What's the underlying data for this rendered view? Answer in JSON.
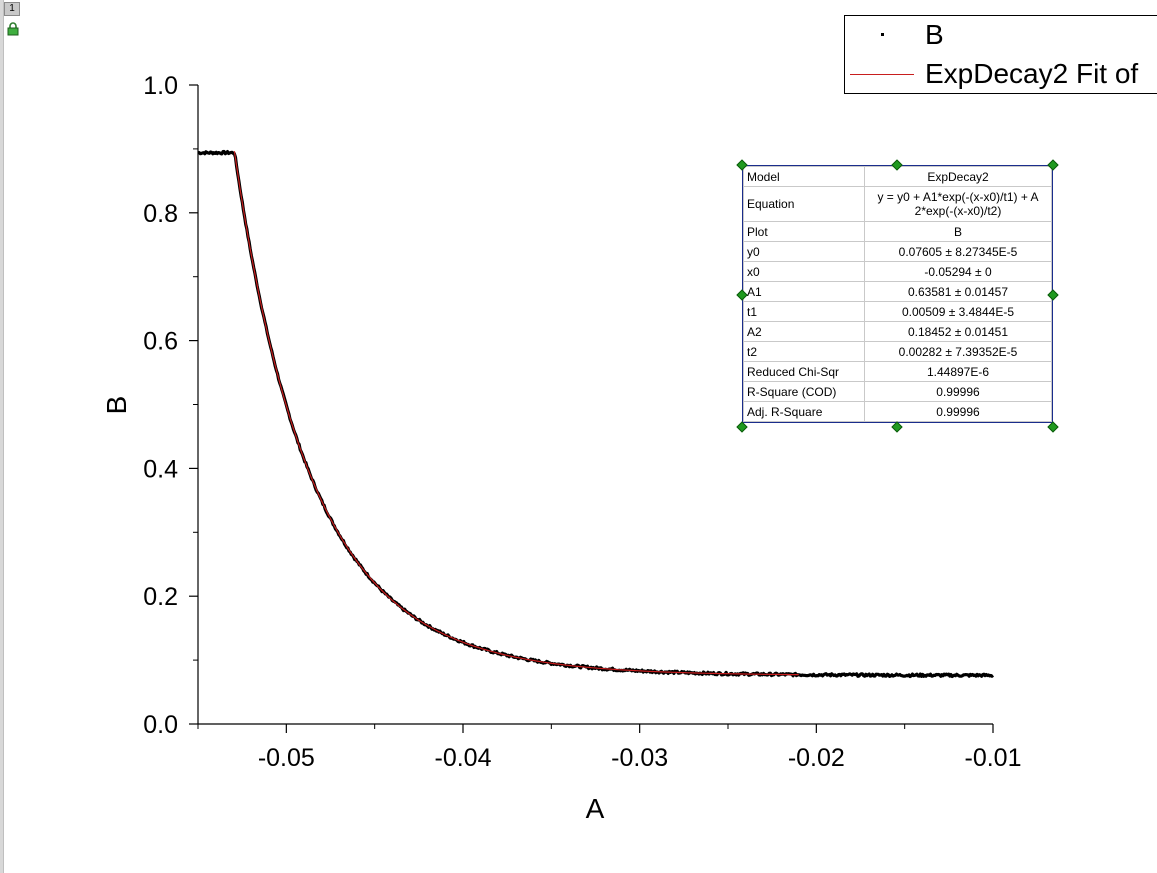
{
  "window": {
    "layer_number": "1"
  },
  "colors": {
    "data": "#000000",
    "fit": "#c81e1e",
    "table_border": "#1a2d8c",
    "handle": "#1f9a1f"
  },
  "legend": {
    "items": [
      {
        "label": "B",
        "symbol": "dot"
      },
      {
        "label": "ExpDecay2 Fit of",
        "symbol": "line"
      }
    ]
  },
  "stats_table": {
    "rows": [
      {
        "key": "Model",
        "value": "ExpDecay2"
      },
      {
        "key": "Equation",
        "value": "y = y0 + A1*exp(-(x-x0)/t1) + A",
        "value2": "2*exp(-(x-x0)/t2)"
      },
      {
        "key": "Plot",
        "value": "B"
      },
      {
        "key": "y0",
        "value": "0.07605 ± 8.27345E-5"
      },
      {
        "key": "x0",
        "value": "-0.05294 ± 0"
      },
      {
        "key": "A1",
        "value": "0.63581 ± 0.01457"
      },
      {
        "key": "t1",
        "value": "0.00509 ± 3.4844E-5"
      },
      {
        "key": "A2",
        "value": "0.18452 ± 0.01451"
      },
      {
        "key": "t2",
        "value": "0.00282 ± 7.39352E-5"
      },
      {
        "key": "Reduced Chi-Sqr",
        "value": "1.44897E-6"
      },
      {
        "key": "R-Square (COD)",
        "value": "0.99996"
      },
      {
        "key": "Adj. R-Square",
        "value": "0.99996"
      }
    ]
  },
  "chart_data": {
    "type": "scatter",
    "xlabel": "A",
    "ylabel": "B",
    "xlim": [
      -0.055,
      -0.01
    ],
    "ylim": [
      0.0,
      1.0
    ],
    "x_ticks": [
      "-0.05",
      "-0.04",
      "-0.03",
      "-0.02",
      "-0.01"
    ],
    "x_tick_values": [
      -0.05,
      -0.04,
      -0.03,
      -0.02,
      -0.01
    ],
    "y_ticks": [
      "0.0",
      "0.2",
      "0.4",
      "0.6",
      "0.8",
      "1.0"
    ],
    "y_tick_values": [
      0.0,
      0.2,
      0.4,
      0.6,
      0.8,
      1.0
    ],
    "grid": false,
    "legend_position": "top-right",
    "series": [
      {
        "name": "B",
        "style": "points",
        "plateau": {
          "x": [
            -0.055,
            -0.05294
          ],
          "y": 0.894
        },
        "decay_x_range": [
          -0.05294,
          -0.01
        ]
      },
      {
        "name": "ExpDecay2 Fit of",
        "style": "line",
        "model": "y = y0 + A1*exp(-(x-x0)/t1) + A2*exp(-(x-x0)/t2)",
        "params": {
          "y0": 0.07605,
          "x0": -0.05294,
          "A1": 0.63581,
          "t1": 0.00509,
          "A2": 0.18452,
          "t2": 0.00282
        },
        "x_range": [
          -0.05294,
          -0.021
        ]
      }
    ]
  }
}
